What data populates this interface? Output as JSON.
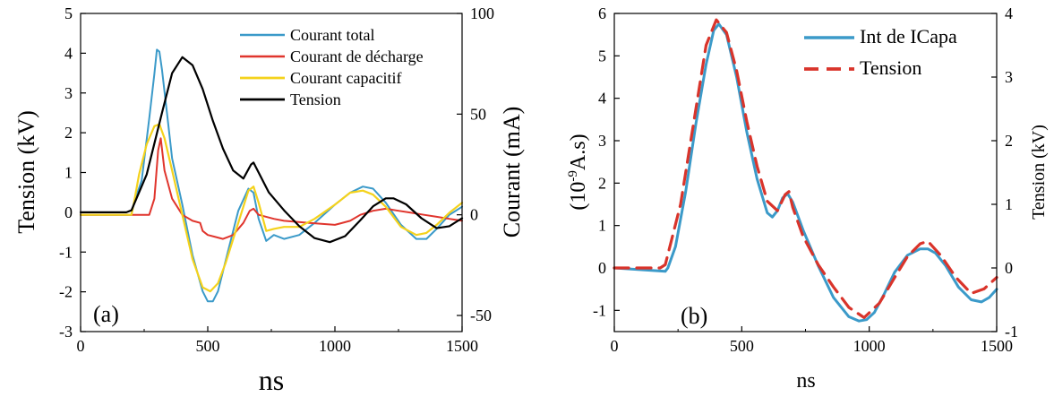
{
  "colors": {
    "courant_total": "#3b9ac9",
    "courant_decharge": "#e0352d",
    "courant_capacitif": "#f4d21c",
    "tension": "#000000",
    "int_icapa": "#3b9ac9",
    "tension_b": "#d9342b"
  },
  "chart_data": [
    {
      "type": "line",
      "panel_label": "(a)",
      "xlabel": "ns",
      "ylabel": "Tension (kV)",
      "y2label": "Courant (mA)",
      "xlim": [
        0,
        1500
      ],
      "ylim": [
        -3,
        5
      ],
      "y2lim": [
        -58,
        100
      ],
      "xticks": [
        "0",
        "500",
        "1000",
        "1500"
      ],
      "yticks": [
        "5",
        "4",
        "3",
        "2",
        "1",
        "0",
        "-1",
        "-2",
        "-3"
      ],
      "y2ticks": [
        "100",
        "50",
        "0",
        "-50"
      ],
      "legend_position": "top-right",
      "series": [
        {
          "name": "Courant total",
          "axis": "right",
          "x": [
            0,
            200,
            210,
            240,
            270,
            290,
            300,
            310,
            320,
            340,
            360,
            400,
            440,
            480,
            500,
            520,
            540,
            580,
            620,
            660,
            680,
            700,
            730,
            760,
            800,
            860,
            920,
            1000,
            1060,
            1110,
            1150,
            1200,
            1260,
            1320,
            1360,
            1400,
            1450,
            1500
          ],
          "y": [
            0,
            0,
            6,
            17,
            48,
            70,
            82,
            81,
            72,
            50,
            28,
            5,
            -20,
            -38,
            -43,
            -43,
            -38,
            -18,
            2,
            13,
            11,
            -2,
            -13,
            -10,
            -12,
            -10,
            -4,
            5,
            11,
            14,
            13,
            6,
            -5,
            -12,
            -12,
            -7,
            0,
            4
          ]
        },
        {
          "name": "Courant de décharge",
          "axis": "right",
          "x": [
            0,
            270,
            290,
            305,
            315,
            330,
            360,
            400,
            440,
            470,
            480,
            500,
            530,
            560,
            600,
            640,
            665,
            680,
            700,
            760,
            800,
            900,
            1000,
            1060,
            1100,
            1150,
            1200,
            1250,
            1300,
            1350,
            1400,
            1450,
            1500
          ],
          "y": [
            0,
            0,
            8,
            32,
            38,
            22,
            8,
            0,
            -3,
            -4,
            -8,
            -10,
            -11,
            -12,
            -10,
            -4,
            2,
            3,
            0,
            -2,
            -3,
            -4,
            -5,
            -3,
            0,
            2,
            3,
            2,
            1,
            0,
            -1,
            -2,
            -3
          ]
        },
        {
          "name": "Courant capacitif",
          "axis": "right",
          "x": [
            0,
            200,
            210,
            230,
            260,
            290,
            310,
            330,
            360,
            400,
            440,
            480,
            510,
            540,
            570,
            620,
            660,
            680,
            700,
            730,
            760,
            800,
            860,
            920,
            1000,
            1060,
            1110,
            1150,
            1200,
            1260,
            1320,
            1360,
            1400,
            1450,
            1500
          ],
          "y": [
            0,
            0,
            6,
            20,
            35,
            44,
            45,
            38,
            22,
            0,
            -22,
            -36,
            -38,
            -34,
            -24,
            -4,
            12,
            14,
            6,
            -8,
            -7,
            -6,
            -6,
            -2,
            5,
            11,
            12,
            10,
            4,
            -6,
            -10,
            -9,
            -5,
            1,
            6
          ]
        },
        {
          "name": "Tension",
          "axis": "left",
          "x": [
            0,
            180,
            200,
            260,
            320,
            360,
            400,
            440,
            480,
            520,
            560,
            600,
            640,
            670,
            680,
            700,
            740,
            800,
            860,
            920,
            980,
            1040,
            1100,
            1150,
            1200,
            1230,
            1280,
            1340,
            1400,
            1450,
            1500
          ],
          "y": [
            0,
            0,
            0.05,
            0.95,
            2.5,
            3.5,
            3.9,
            3.7,
            3.1,
            2.3,
            1.6,
            1.05,
            0.85,
            1.2,
            1.25,
            1.0,
            0.5,
            0.05,
            -0.35,
            -0.65,
            -0.75,
            -0.6,
            -0.2,
            0.15,
            0.35,
            0.35,
            0.2,
            -0.15,
            -0.4,
            -0.35,
            -0.15
          ]
        }
      ]
    },
    {
      "type": "line",
      "panel_label": "(b)",
      "xlabel": "ns",
      "ylabel": "(10-9A.s)",
      "ylabel_base": "(10",
      "ylabel_exp": "-9",
      "ylabel_rest": "A.s)",
      "y2label": "Tension (kV)",
      "xlim": [
        0,
        1500
      ],
      "ylim": [
        -1.5,
        6
      ],
      "y2lim": [
        -1,
        4
      ],
      "xticks": [
        "0",
        "500",
        "1000",
        "1500"
      ],
      "yticks": [
        "6",
        "5",
        "4",
        "3",
        "2",
        "1",
        "0",
        "-1"
      ],
      "y2ticks": [
        "4",
        "3",
        "2",
        "1",
        "0",
        "-1"
      ],
      "legend_position": "top-right",
      "series": [
        {
          "name": "Int de ICapa",
          "axis": "left",
          "x": [
            0,
            200,
            210,
            240,
            280,
            320,
            360,
            390,
            410,
            440,
            480,
            520,
            560,
            600,
            620,
            640,
            660,
            680,
            700,
            740,
            800,
            860,
            920,
            960,
            990,
            1020,
            1060,
            1100,
            1150,
            1200,
            1230,
            1260,
            1300,
            1350,
            1400,
            1440,
            1470,
            1500
          ],
          "y": [
            0,
            -0.08,
            0,
            0.5,
            1.8,
            3.4,
            4.8,
            5.6,
            5.75,
            5.5,
            4.5,
            3.2,
            2.1,
            1.3,
            1.2,
            1.35,
            1.65,
            1.75,
            1.55,
            0.9,
            0.05,
            -0.7,
            -1.15,
            -1.25,
            -1.22,
            -1.05,
            -0.6,
            -0.1,
            0.3,
            0.45,
            0.45,
            0.35,
            0.05,
            -0.45,
            -0.75,
            -0.8,
            -0.7,
            -0.5
          ]
        },
        {
          "name": "Tension",
          "axis": "right",
          "x": [
            0,
            180,
            200,
            260,
            320,
            360,
            400,
            440,
            480,
            520,
            560,
            600,
            640,
            670,
            685,
            700,
            740,
            800,
            860,
            920,
            980,
            1040,
            1100,
            1150,
            1200,
            1230,
            1280,
            1340,
            1400,
            1450,
            1500
          ],
          "y": [
            0,
            0,
            0.05,
            1.0,
            2.5,
            3.5,
            3.9,
            3.7,
            3.1,
            2.3,
            1.6,
            1.05,
            0.9,
            1.15,
            1.2,
            0.95,
            0.5,
            0.05,
            -0.3,
            -0.62,
            -0.78,
            -0.55,
            -0.15,
            0.18,
            0.38,
            0.42,
            0.2,
            -0.15,
            -0.4,
            -0.33,
            -0.15
          ]
        }
      ]
    }
  ]
}
